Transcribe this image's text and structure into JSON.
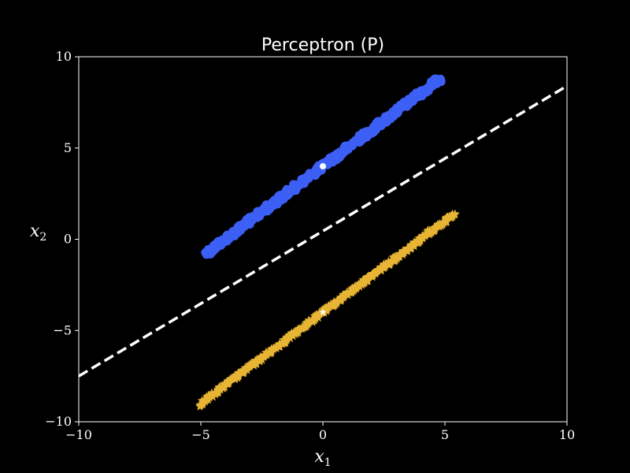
{
  "chart_data": {
    "type": "scatter",
    "title": "Perceptron (P)",
    "xlabel": "x",
    "xlabel_sub": "1",
    "ylabel": "x",
    "ylabel_sub": "2",
    "xlim": [
      -10,
      10
    ],
    "ylim": [
      -10,
      10
    ],
    "xticks": [
      -10,
      -5,
      0,
      5,
      10
    ],
    "yticks": [
      -10,
      -5,
      0,
      5,
      10
    ],
    "xtick_labels": [
      "−10",
      "−5",
      "0",
      "5",
      "10"
    ],
    "ytick_labels": [
      "−10",
      "−5",
      "0",
      "5",
      "10"
    ],
    "grid": false,
    "background": "#000000",
    "series": [
      {
        "marker": "circle",
        "color": "#3c5ff5",
        "line_start": [
          -4.8,
          -0.8
        ],
        "line_end": [
          4.8,
          8.8
        ],
        "spread": 0.18,
        "center": [
          0,
          4
        ],
        "center_color": "#ffffff"
      },
      {
        "marker": "star",
        "color": "#e8b434",
        "line_start": [
          -5.1,
          -9.1
        ],
        "line_end": [
          5.4,
          1.4
        ],
        "spread": 0.12,
        "center": [
          0,
          -4
        ],
        "center_color": "#ffffff"
      }
    ],
    "decision_boundary": {
      "style": "dashed",
      "color": "#ffffff",
      "slope": 0.795,
      "intercept": 0.45
    }
  }
}
